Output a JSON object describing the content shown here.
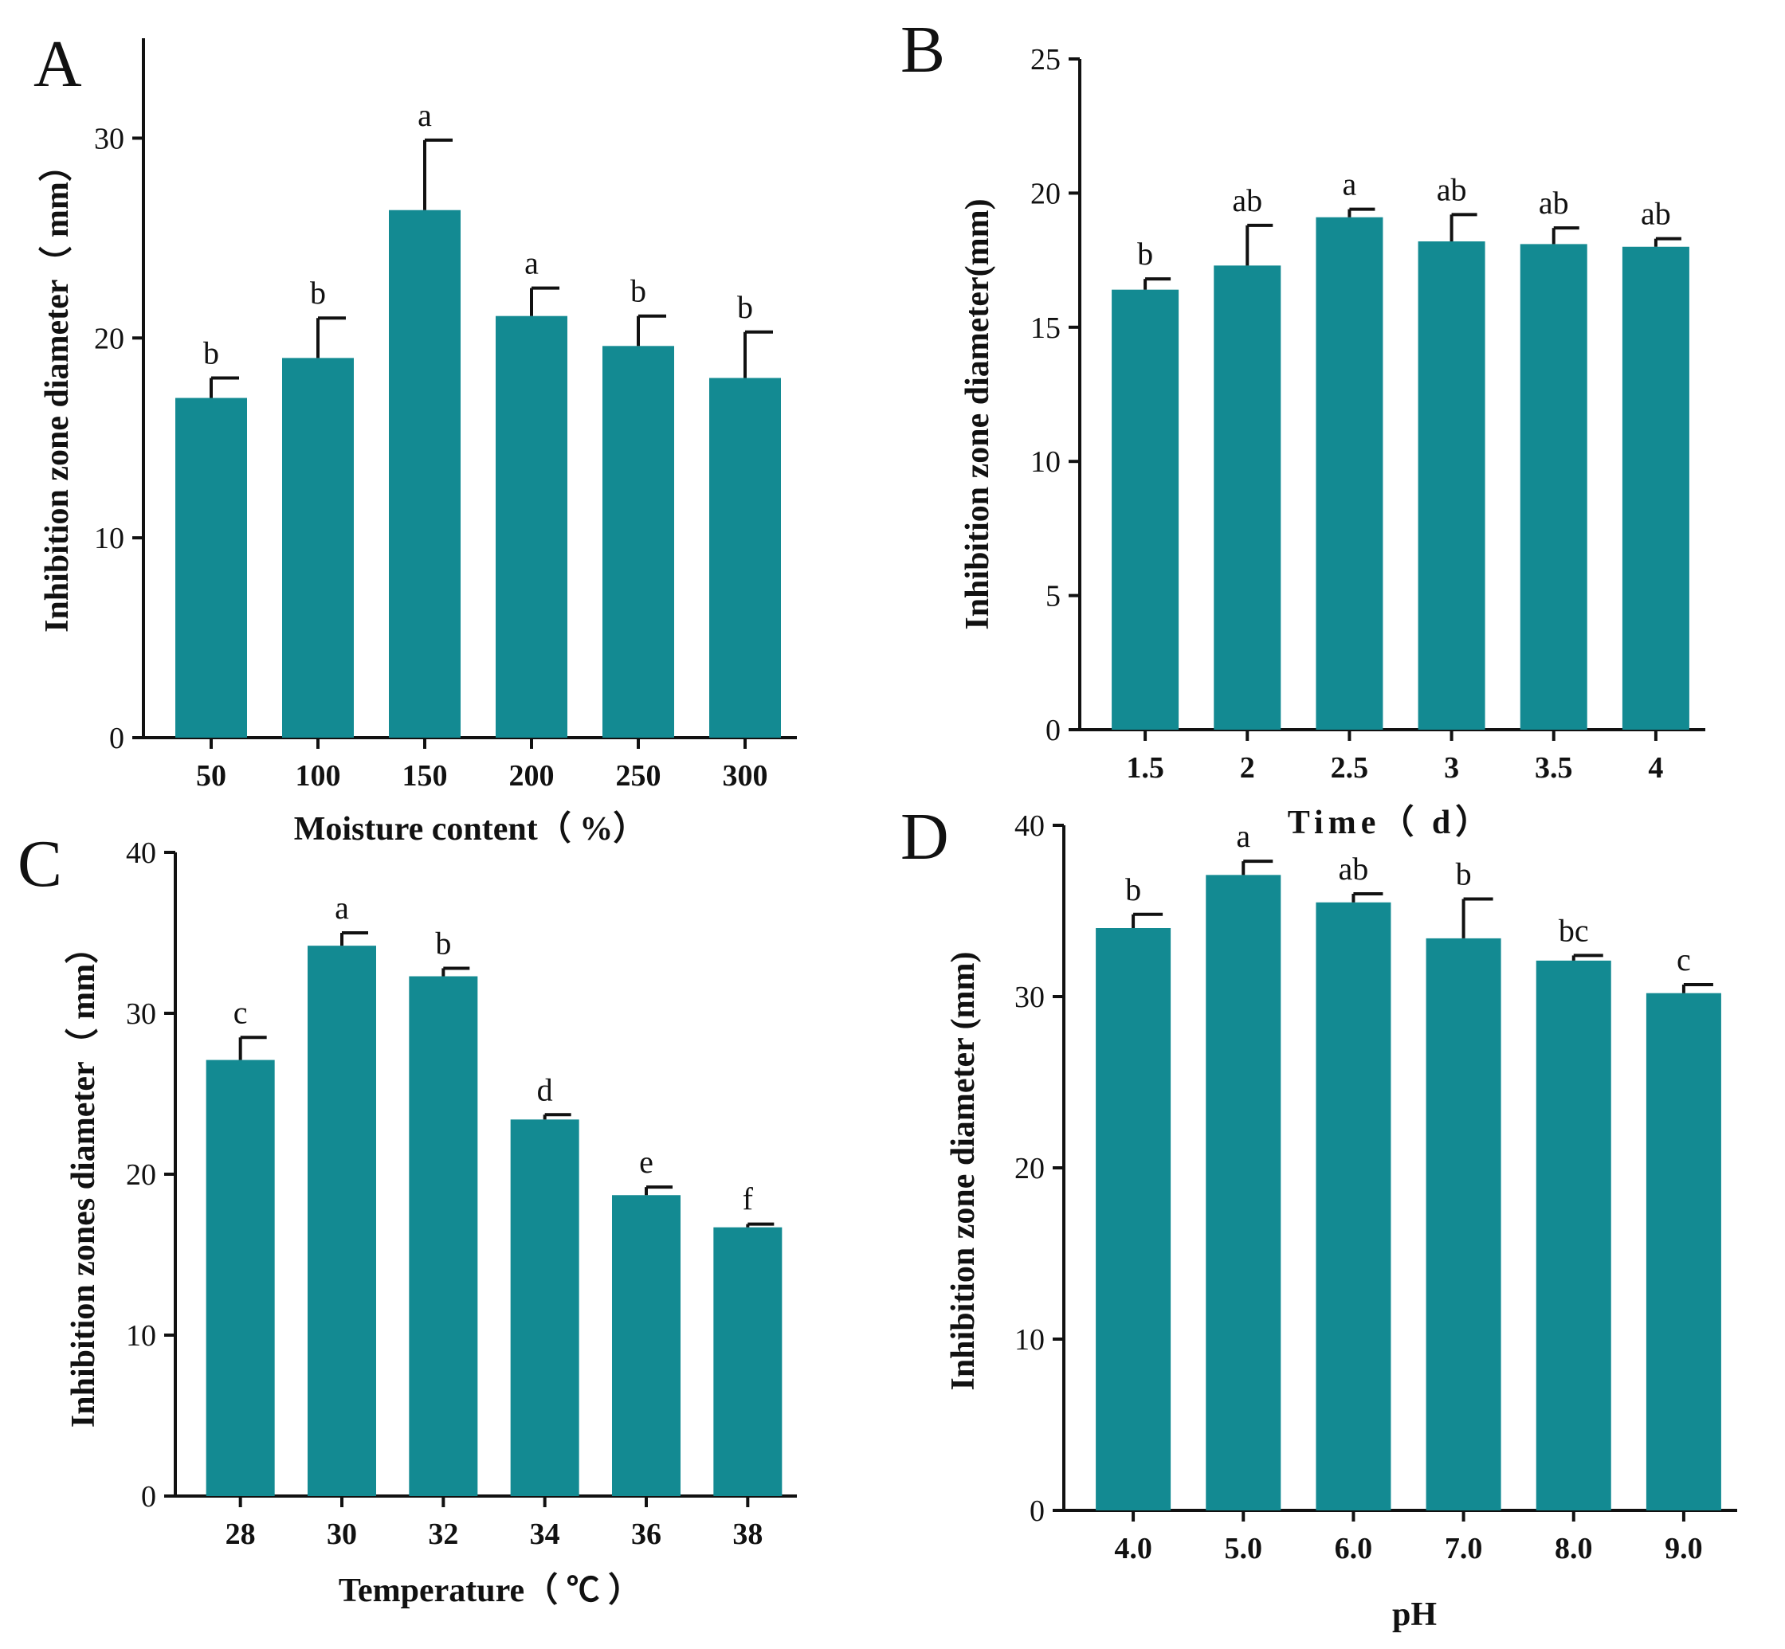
{
  "chart_data": [
    {
      "panel": "A",
      "type": "bar",
      "categories": [
        "50",
        "100",
        "150",
        "200",
        "250",
        "300"
      ],
      "values": [
        17.0,
        19.0,
        26.4,
        21.1,
        19.6,
        18.0
      ],
      "errors": [
        1.0,
        2.0,
        3.5,
        1.4,
        1.5,
        2.3
      ],
      "labels": [
        "b",
        "b",
        "a",
        "a",
        "b",
        "b"
      ],
      "xlabel": "Moisture content（ %）",
      "ylabel": "Inhibition zone diameter（ mm）",
      "ylim": [
        0,
        35
      ],
      "yticks": [
        0,
        10,
        20,
        30
      ],
      "bar_color": "#138a92"
    },
    {
      "panel": "B",
      "type": "bar",
      "categories": [
        "1.5",
        "2",
        "2.5",
        "3",
        "3.5",
        "4"
      ],
      "values": [
        16.4,
        17.3,
        19.1,
        18.2,
        18.1,
        18.0
      ],
      "errors": [
        0.4,
        1.5,
        0.3,
        1.0,
        0.6,
        0.3
      ],
      "labels": [
        "b",
        "ab",
        "a",
        "ab",
        "ab",
        "ab"
      ],
      "xlabel": "Time（ d）",
      "ylabel": "Inhibition zone diameter(mm)",
      "ylim": [
        0,
        25
      ],
      "yticks": [
        0,
        5,
        10,
        15,
        20,
        25
      ],
      "bar_color": "#138a92"
    },
    {
      "panel": "C",
      "type": "bar",
      "categories": [
        "28",
        "30",
        "32",
        "34",
        "36",
        "38"
      ],
      "values": [
        27.1,
        34.2,
        32.3,
        23.4,
        18.7,
        16.7
      ],
      "errors": [
        1.4,
        0.8,
        0.5,
        0.3,
        0.5,
        0.2
      ],
      "labels": [
        "c",
        "a",
        "b",
        "d",
        "e",
        "f"
      ],
      "xlabel": "Temperature（ ℃ ）",
      "ylabel": "Inhibition zones diameter（ mm）",
      "ylim": [
        0,
        40
      ],
      "yticks": [
        0,
        10,
        20,
        30,
        40
      ],
      "bar_color": "#138a92"
    },
    {
      "panel": "D",
      "type": "bar",
      "categories": [
        "4.0",
        "5.0",
        "6.0",
        "7.0",
        "8.0",
        "9.0"
      ],
      "values": [
        34.0,
        37.1,
        35.5,
        33.4,
        32.1,
        30.2
      ],
      "errors": [
        0.8,
        0.8,
        0.5,
        2.3,
        0.3,
        0.5
      ],
      "labels": [
        "b",
        "a",
        "ab",
        "b",
        "bc",
        "c"
      ],
      "xlabel": "pH",
      "ylabel": "Inhibition zone diameter (mm)",
      "ylim": [
        0,
        40
      ],
      "yticks": [
        0,
        10,
        20,
        30,
        40
      ],
      "bar_color": "#138a92"
    }
  ]
}
